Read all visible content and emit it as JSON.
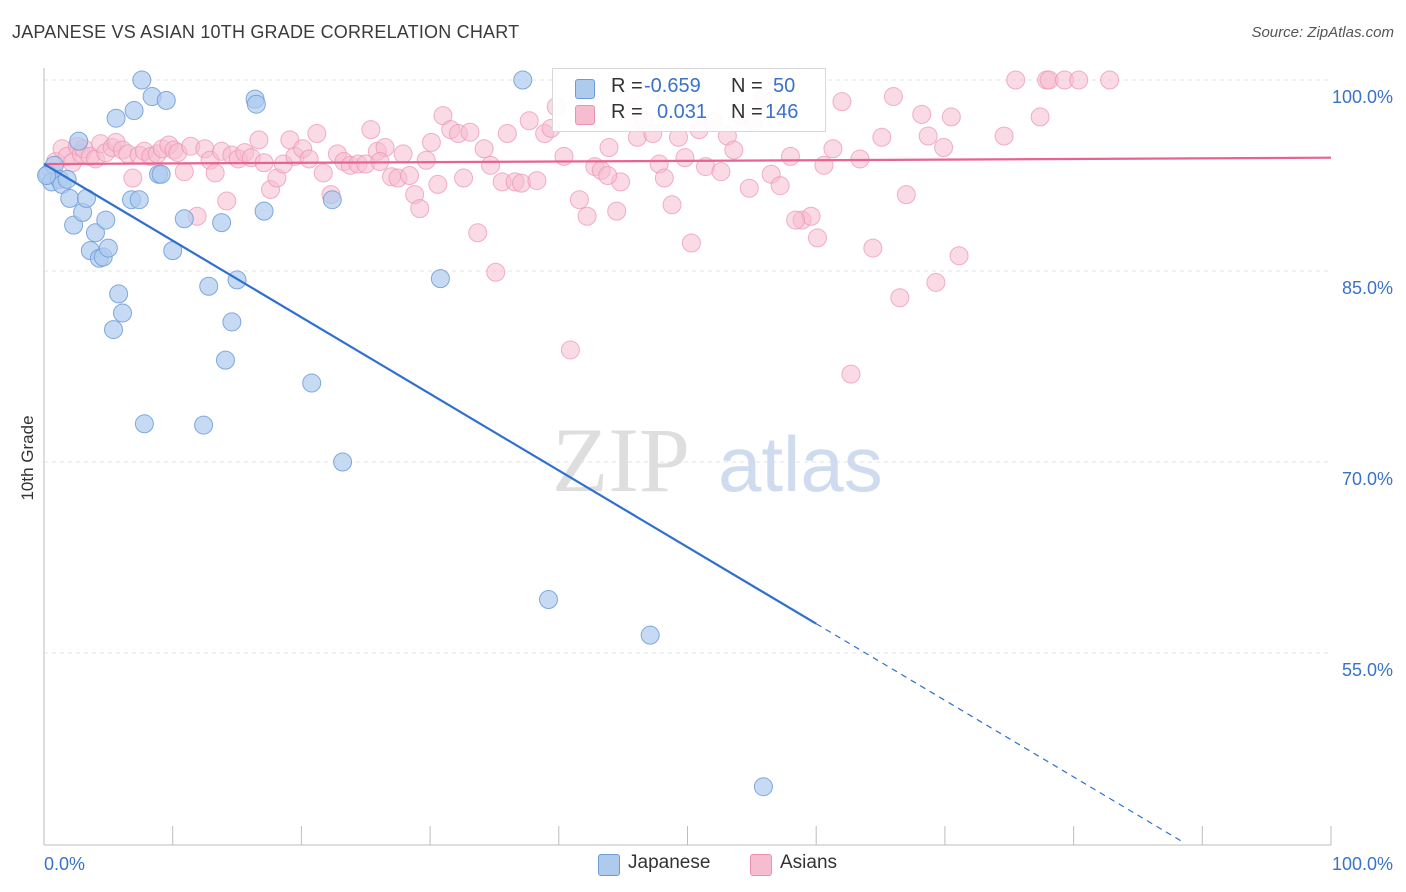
{
  "header": {
    "title": "JAPANESE VS ASIAN 10TH GRADE CORRELATION CHART",
    "source": "Source: ZipAtlas.com"
  },
  "watermark": {
    "part1": "ZIP",
    "part2": "atlas"
  },
  "legend": {
    "japanese": {
      "r_label": "R =",
      "r_value": "-0.659",
      "n_label": "N =",
      "n_value": "50"
    },
    "asians": {
      "r_label": "R =",
      "r_value": "0.031",
      "n_label": "N =",
      "n_value": "146"
    }
  },
  "bottom_legend": {
    "japanese": "Japanese",
    "asians": "Asians"
  },
  "colors": {
    "japanese_fill": "#aecbee",
    "japanese_stroke": "#6d9bd8",
    "japanese_line": "#2f6fcf",
    "asians_fill": "#f6bccf",
    "asians_stroke": "#ec92b0",
    "asians_line": "#e8638f",
    "axis_text": "#3a72c9",
    "grid": "#e3e3e3"
  },
  "chart_data": {
    "type": "scatter",
    "title": "JAPANESE VS ASIAN 10TH GRADE CORRELATION CHART",
    "xlabel": "",
    "ylabel": "10th Grade",
    "xlim": [
      0,
      100
    ],
    "ylim": [
      38,
      101
    ],
    "x_tick_labels": {
      "min": "0.0%",
      "max": "100.0%"
    },
    "y_ticks": [
      {
        "value": 100,
        "label": "100.0%"
      },
      {
        "value": 85,
        "label": "85.0%"
      },
      {
        "value": 70,
        "label": "70.0%"
      },
      {
        "value": 55,
        "label": "55.0%"
      }
    ],
    "grid": true,
    "legend_position": "top-center",
    "series": [
      {
        "name": "Japanese",
        "r": -0.659,
        "n": 50,
        "trend": {
          "x0": 0,
          "y0": 93.4,
          "x1": 60,
          "y1": 57.3,
          "dash_x_end": 88.5
        },
        "points": [
          [
            0.3,
            92.6
          ],
          [
            0.6,
            92.0
          ],
          [
            0.8,
            93.3
          ],
          [
            1.2,
            92.2
          ],
          [
            1.4,
            91.8
          ],
          [
            1.8,
            92.2
          ],
          [
            2.0,
            90.7
          ],
          [
            2.3,
            88.6
          ],
          [
            2.7,
            95.2
          ],
          [
            3.0,
            89.6
          ],
          [
            3.3,
            90.7
          ],
          [
            3.6,
            86.6
          ],
          [
            4.0,
            88.0
          ],
          [
            4.3,
            86.0
          ],
          [
            4.6,
            86.1
          ],
          [
            4.8,
            89.0
          ],
          [
            5.0,
            86.8
          ],
          [
            5.6,
            97.0
          ],
          [
            5.8,
            83.2
          ],
          [
            5.4,
            80.4
          ],
          [
            6.1,
            81.7
          ],
          [
            6.8,
            90.6
          ],
          [
            7.0,
            97.6
          ],
          [
            7.4,
            90.6
          ],
          [
            7.6,
            100.0
          ],
          [
            7.8,
            73.0
          ],
          [
            8.4,
            98.7
          ],
          [
            8.9,
            92.6
          ],
          [
            9.1,
            92.6
          ],
          [
            9.5,
            98.4
          ],
          [
            10.0,
            86.6
          ],
          [
            10.9,
            89.1
          ],
          [
            12.4,
            72.9
          ],
          [
            12.8,
            83.8
          ],
          [
            13.8,
            88.8
          ],
          [
            14.1,
            78.0
          ],
          [
            14.6,
            81.0
          ],
          [
            15.0,
            84.3
          ],
          [
            16.4,
            98.5
          ],
          [
            16.5,
            98.1
          ],
          [
            17.1,
            89.7
          ],
          [
            20.8,
            76.2
          ],
          [
            22.4,
            90.6
          ],
          [
            23.2,
            70.0
          ],
          [
            30.8,
            84.4
          ],
          [
            37.2,
            100.0
          ],
          [
            39.2,
            59.2
          ],
          [
            47.1,
            56.4
          ],
          [
            55.9,
            44.5
          ],
          [
            0.2,
            92.5
          ]
        ]
      },
      {
        "name": "Asians",
        "r": 0.031,
        "n": 146,
        "trend": {
          "x0": 0,
          "y0": 93.4,
          "x1": 100,
          "y1": 93.9
        },
        "points": [
          [
            0.6,
            92.8
          ],
          [
            0.9,
            93.6
          ],
          [
            1.4,
            94.6
          ],
          [
            1.8,
            94.0
          ],
          [
            2.2,
            93.5
          ],
          [
            2.6,
            94.8
          ],
          [
            2.9,
            94.2
          ],
          [
            3.1,
            94.6
          ],
          [
            3.6,
            94.0
          ],
          [
            4.0,
            93.8
          ],
          [
            4.4,
            95.0
          ],
          [
            4.8,
            94.3
          ],
          [
            5.3,
            94.7
          ],
          [
            5.6,
            95.1
          ],
          [
            6.1,
            94.5
          ],
          [
            6.5,
            94.2
          ],
          [
            6.9,
            92.3
          ],
          [
            7.4,
            94.1
          ],
          [
            7.8,
            94.4
          ],
          [
            8.3,
            94.0
          ],
          [
            8.8,
            94.2
          ],
          [
            9.2,
            94.6
          ],
          [
            9.7,
            94.9
          ],
          [
            10.1,
            94.5
          ],
          [
            10.4,
            94.3
          ],
          [
            10.9,
            92.8
          ],
          [
            11.4,
            94.8
          ],
          [
            11.9,
            89.3
          ],
          [
            12.5,
            94.6
          ],
          [
            12.9,
            93.7
          ],
          [
            13.3,
            92.7
          ],
          [
            13.8,
            94.4
          ],
          [
            14.2,
            90.5
          ],
          [
            14.6,
            94.1
          ],
          [
            15.1,
            93.8
          ],
          [
            15.6,
            94.3
          ],
          [
            16.1,
            93.9
          ],
          [
            16.7,
            95.3
          ],
          [
            17.1,
            93.5
          ],
          [
            17.6,
            91.4
          ],
          [
            18.1,
            92.3
          ],
          [
            18.6,
            93.4
          ],
          [
            19.1,
            95.3
          ],
          [
            19.5,
            94.0
          ],
          [
            20.1,
            94.6
          ],
          [
            20.6,
            93.8
          ],
          [
            21.2,
            95.8
          ],
          [
            21.7,
            92.7
          ],
          [
            22.3,
            91.0
          ],
          [
            22.8,
            94.2
          ],
          [
            23.3,
            93.6
          ],
          [
            23.8,
            93.3
          ],
          [
            24.4,
            93.4
          ],
          [
            25.0,
            93.4
          ],
          [
            25.4,
            96.1
          ],
          [
            25.9,
            94.4
          ],
          [
            26.5,
            94.7
          ],
          [
            27.0,
            92.4
          ],
          [
            27.5,
            92.3
          ],
          [
            27.9,
            94.2
          ],
          [
            28.4,
            92.5
          ],
          [
            28.8,
            91.0
          ],
          [
            29.2,
            89.9
          ],
          [
            29.7,
            93.7
          ],
          [
            30.1,
            95.1
          ],
          [
            30.6,
            91.8
          ],
          [
            31.0,
            97.2
          ],
          [
            31.6,
            96.1
          ],
          [
            32.2,
            95.8
          ],
          [
            32.6,
            92.3
          ],
          [
            33.1,
            95.9
          ],
          [
            33.7,
            88.0
          ],
          [
            34.2,
            94.6
          ],
          [
            34.7,
            93.3
          ],
          [
            35.1,
            84.9
          ],
          [
            35.6,
            92.0
          ],
          [
            36.0,
            95.8
          ],
          [
            36.6,
            92.0
          ],
          [
            37.1,
            91.9
          ],
          [
            37.7,
            96.8
          ],
          [
            38.3,
            92.1
          ],
          [
            38.9,
            95.8
          ],
          [
            39.4,
            96.2
          ],
          [
            39.8,
            97.9
          ],
          [
            40.4,
            94.0
          ],
          [
            40.9,
            78.8
          ],
          [
            41.6,
            90.6
          ],
          [
            42.2,
            89.3
          ],
          [
            42.8,
            93.2
          ],
          [
            43.3,
            92.9
          ],
          [
            43.9,
            94.7
          ],
          [
            44.5,
            89.7
          ],
          [
            44.8,
            92.0
          ],
          [
            45.5,
            97.6
          ],
          [
            46.1,
            95.5
          ],
          [
            46.6,
            96.9
          ],
          [
            47.3,
            95.8
          ],
          [
            47.8,
            93.4
          ],
          [
            48.2,
            92.3
          ],
          [
            48.8,
            90.2
          ],
          [
            49.3,
            95.5
          ],
          [
            49.8,
            93.9
          ],
          [
            50.3,
            87.2
          ],
          [
            50.9,
            96.1
          ],
          [
            51.4,
            93.2
          ],
          [
            52.0,
            96.7
          ],
          [
            52.6,
            92.8
          ],
          [
            53.1,
            95.6
          ],
          [
            53.6,
            94.5
          ],
          [
            54.2,
            97.2
          ],
          [
            54.8,
            91.5
          ],
          [
            55.1,
            96.8
          ],
          [
            55.9,
            98.6
          ],
          [
            56.5,
            92.6
          ],
          [
            57.2,
            91.7
          ],
          [
            58.0,
            94.0
          ],
          [
            58.9,
            89.0
          ],
          [
            59.6,
            89.3
          ],
          [
            60.1,
            87.6
          ],
          [
            60.6,
            93.3
          ],
          [
            61.3,
            94.6
          ],
          [
            62.0,
            98.3
          ],
          [
            62.7,
            76.9
          ],
          [
            63.4,
            93.8
          ],
          [
            64.4,
            86.8
          ],
          [
            65.1,
            95.5
          ],
          [
            66.0,
            98.7
          ],
          [
            66.5,
            82.9
          ],
          [
            67.0,
            91.0
          ],
          [
            68.2,
            97.3
          ],
          [
            68.7,
            95.6
          ],
          [
            69.3,
            84.1
          ],
          [
            69.9,
            94.7
          ],
          [
            70.5,
            97.1
          ],
          [
            71.1,
            86.2
          ],
          [
            74.6,
            95.6
          ],
          [
            75.5,
            100.0
          ],
          [
            77.4,
            97.1
          ],
          [
            77.9,
            100.0
          ],
          [
            78.1,
            100.0
          ],
          [
            79.3,
            100.0
          ],
          [
            80.4,
            100.0
          ],
          [
            82.8,
            100.0
          ],
          [
            43.8,
            92.5
          ],
          [
            26.1,
            93.6
          ],
          [
            58.4,
            89.0
          ]
        ]
      }
    ]
  }
}
